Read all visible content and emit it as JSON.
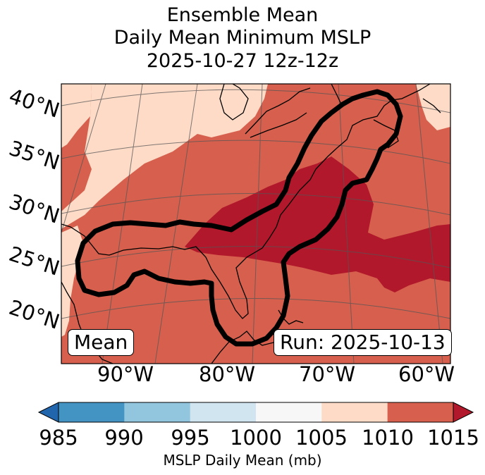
{
  "title": {
    "line1": "Ensemble Mean",
    "line2": "Daily Mean Minimum MSLP",
    "line3": "2025-10-27 12z-12z"
  },
  "lat_labels": [
    "40°N",
    "35°N",
    "30°N",
    "25°N",
    "20°N"
  ],
  "lon_labels": [
    "90°W",
    "80°W",
    "70°W",
    "60°W"
  ],
  "annotation_left": "Mean",
  "annotation_right": "Run: 2025-10-13",
  "colorbar": {
    "ticks": [
      "985",
      "990",
      "995",
      "1000",
      "1005",
      "1010",
      "1015"
    ],
    "label": "MSLP Daily Mean (mb)",
    "bins": [
      {
        "range": "985-990",
        "color": "#4393c3"
      },
      {
        "range": "990-995",
        "color": "#92c5de"
      },
      {
        "range": "995-1000",
        "color": "#d1e5f0"
      },
      {
        "range": "1000-1005",
        "color": "#f7f7f7"
      },
      {
        "range": "1005-1010",
        "color": "#fddbc7"
      },
      {
        "range": "1010-1015",
        "color": "#d6604d"
      }
    ],
    "under_color": "#2166ac",
    "over_color": "#b2182b"
  },
  "field_colors": {
    "light": "#fddbc7",
    "mid": "#d6604d",
    "dark": "#b2182b"
  }
}
